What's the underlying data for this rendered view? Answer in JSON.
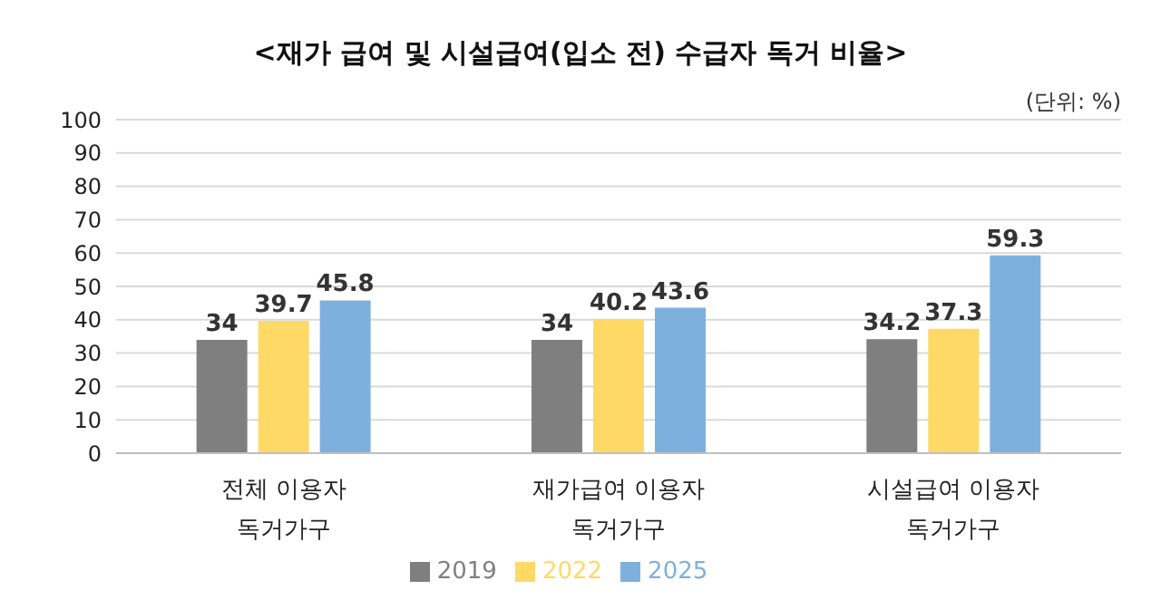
{
  "chart_data": {
    "type": "bar",
    "title": "<재가 급여 및 시설급여(입소 전) 수급자 독거 비율>",
    "annotations": [
      "(단위: %)"
    ],
    "categories": [
      "전체 이용자 독거가구",
      "재가급여 이용자 독거가구",
      "시설급여 이용자 독거가구"
    ],
    "series": [
      {
        "name": "2019",
        "color": "#7f7f7f",
        "values": [
          34,
          34,
          34.2
        ]
      },
      {
        "name": "2022",
        "color": "#ffd966",
        "values": [
          39.7,
          40.2,
          37.3
        ]
      },
      {
        "name": "2025",
        "color": "#7eb0de",
        "values": [
          45.8,
          43.6,
          59.3
        ]
      }
    ],
    "ylim": [
      0,
      100
    ],
    "yticks": [
      0,
      10,
      20,
      30,
      40,
      50,
      60,
      70,
      80,
      90,
      100
    ],
    "grid": "y",
    "legend": "bottom",
    "data_labels": true
  }
}
